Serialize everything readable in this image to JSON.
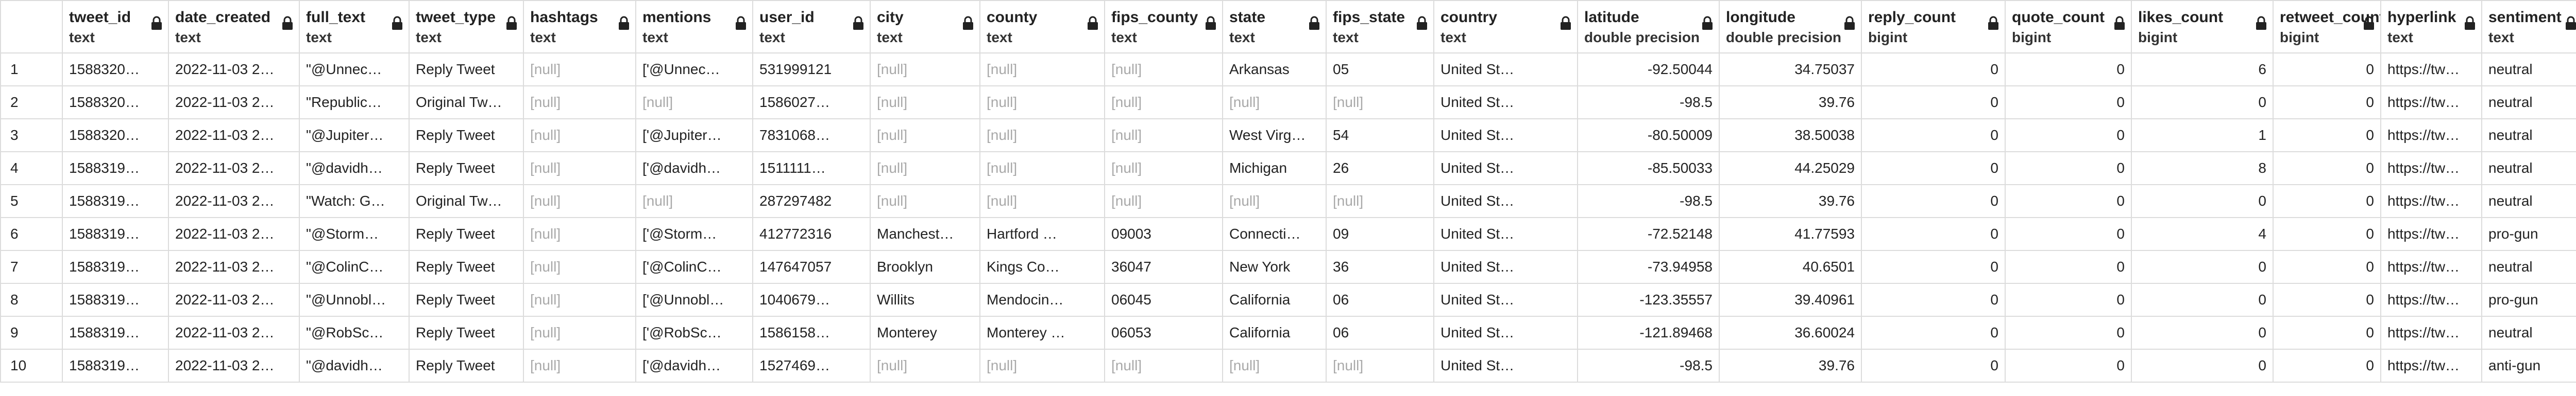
{
  "columns": [
    {
      "name": "tweet_id",
      "type": "text"
    },
    {
      "name": "date_created",
      "type": "text"
    },
    {
      "name": "full_text",
      "type": "text"
    },
    {
      "name": "tweet_type",
      "type": "text"
    },
    {
      "name": "hashtags",
      "type": "text"
    },
    {
      "name": "mentions",
      "type": "text"
    },
    {
      "name": "user_id",
      "type": "text"
    },
    {
      "name": "city",
      "type": "text"
    },
    {
      "name": "county",
      "type": "text"
    },
    {
      "name": "fips_county",
      "type": "text"
    },
    {
      "name": "state",
      "type": "text"
    },
    {
      "name": "fips_state",
      "type": "text"
    },
    {
      "name": "country",
      "type": "text"
    },
    {
      "name": "latitude",
      "type": "double precision"
    },
    {
      "name": "longitude",
      "type": "double precision"
    },
    {
      "name": "reply_count",
      "type": "bigint"
    },
    {
      "name": "quote_count",
      "type": "bigint"
    },
    {
      "name": "likes_count",
      "type": "bigint"
    },
    {
      "name": "retweet_counts",
      "type": "bigint"
    },
    {
      "name": "hyperlink",
      "type": "text"
    },
    {
      "name": "sentiment",
      "type": "text"
    }
  ],
  "rows": [
    [
      "1",
      "1588320…",
      "2022-11-03 2…",
      "\"@Unnec…",
      "Reply Tweet",
      "[null]",
      "['@Unnec…",
      "531999121",
      "[null]",
      "[null]",
      "[null]",
      "Arkansas",
      "05",
      "United St…",
      "-92.50044",
      "34.75037",
      "0",
      "0",
      "6",
      "0",
      "https://tw…",
      "neutral"
    ],
    [
      "2",
      "1588320…",
      "2022-11-03 2…",
      "\"Republic…",
      "Original Tw…",
      "[null]",
      "[null]",
      "1586027…",
      "[null]",
      "[null]",
      "[null]",
      "[null]",
      "[null]",
      "United St…",
      "-98.5",
      "39.76",
      "0",
      "0",
      "0",
      "0",
      "https://tw…",
      "neutral"
    ],
    [
      "3",
      "1588320…",
      "2022-11-03 2…",
      "\"@Jupiter…",
      "Reply Tweet",
      "[null]",
      "['@Jupiter…",
      "7831068…",
      "[null]",
      "[null]",
      "[null]",
      "West Virg…",
      "54",
      "United St…",
      "-80.50009",
      "38.50038",
      "0",
      "0",
      "1",
      "0",
      "https://tw…",
      "neutral"
    ],
    [
      "4",
      "1588319…",
      "2022-11-03 2…",
      "\"@davidh…",
      "Reply Tweet",
      "[null]",
      "['@davidh…",
      "1511111…",
      "[null]",
      "[null]",
      "[null]",
      "Michigan",
      "26",
      "United St…",
      "-85.50033",
      "44.25029",
      "0",
      "0",
      "8",
      "0",
      "https://tw…",
      "neutral"
    ],
    [
      "5",
      "1588319…",
      "2022-11-03 2…",
      "\"Watch: G…",
      "Original Tw…",
      "[null]",
      "[null]",
      "287297482",
      "[null]",
      "[null]",
      "[null]",
      "[null]",
      "[null]",
      "United St…",
      "-98.5",
      "39.76",
      "0",
      "0",
      "0",
      "0",
      "https://tw…",
      "neutral"
    ],
    [
      "6",
      "1588319…",
      "2022-11-03 2…",
      "\"@Storm…",
      "Reply Tweet",
      "[null]",
      "['@Storm…",
      "412772316",
      "Manchest…",
      "Hartford …",
      "09003",
      "Connecti…",
      "09",
      "United St…",
      "-72.52148",
      "41.77593",
      "0",
      "0",
      "4",
      "0",
      "https://tw…",
      "pro-gun"
    ],
    [
      "7",
      "1588319…",
      "2022-11-03 2…",
      "\"@ColinC…",
      "Reply Tweet",
      "[null]",
      "['@ColinC…",
      "147647057",
      "Brooklyn",
      "Kings Co…",
      "36047",
      "New York",
      "36",
      "United St…",
      "-73.94958",
      "40.6501",
      "0",
      "0",
      "0",
      "0",
      "https://tw…",
      "neutral"
    ],
    [
      "8",
      "1588319…",
      "2022-11-03 2…",
      "\"@Unnobl…",
      "Reply Tweet",
      "[null]",
      "['@Unnobl…",
      "1040679…",
      "Willits",
      "Mendocin…",
      "06045",
      "California",
      "06",
      "United St…",
      "-123.35557",
      "39.40961",
      "0",
      "0",
      "0",
      "0",
      "https://tw…",
      "pro-gun"
    ],
    [
      "9",
      "1588319…",
      "2022-11-03 2…",
      "\"@RobSc…",
      "Reply Tweet",
      "[null]",
      "['@RobSc…",
      "1586158…",
      "Monterey",
      "Monterey …",
      "06053",
      "California",
      "06",
      "United St…",
      "-121.89468",
      "36.60024",
      "0",
      "0",
      "0",
      "0",
      "https://tw…",
      "neutral"
    ],
    [
      "10",
      "1588319…",
      "2022-11-03 2…",
      "\"@davidh…",
      "Reply Tweet",
      "[null]",
      "['@davidh…",
      "1527469…",
      "[null]",
      "[null]",
      "[null]",
      "[null]",
      "[null]",
      "United St…",
      "-98.5",
      "39.76",
      "0",
      "0",
      "0",
      "0",
      "https://tw…",
      "anti-gun"
    ]
  ],
  "icons": {
    "column_lock": "lock-icon"
  },
  "colors": {
    "null_text": "#a9a9a9",
    "grid_line": "#dcdcdc"
  }
}
